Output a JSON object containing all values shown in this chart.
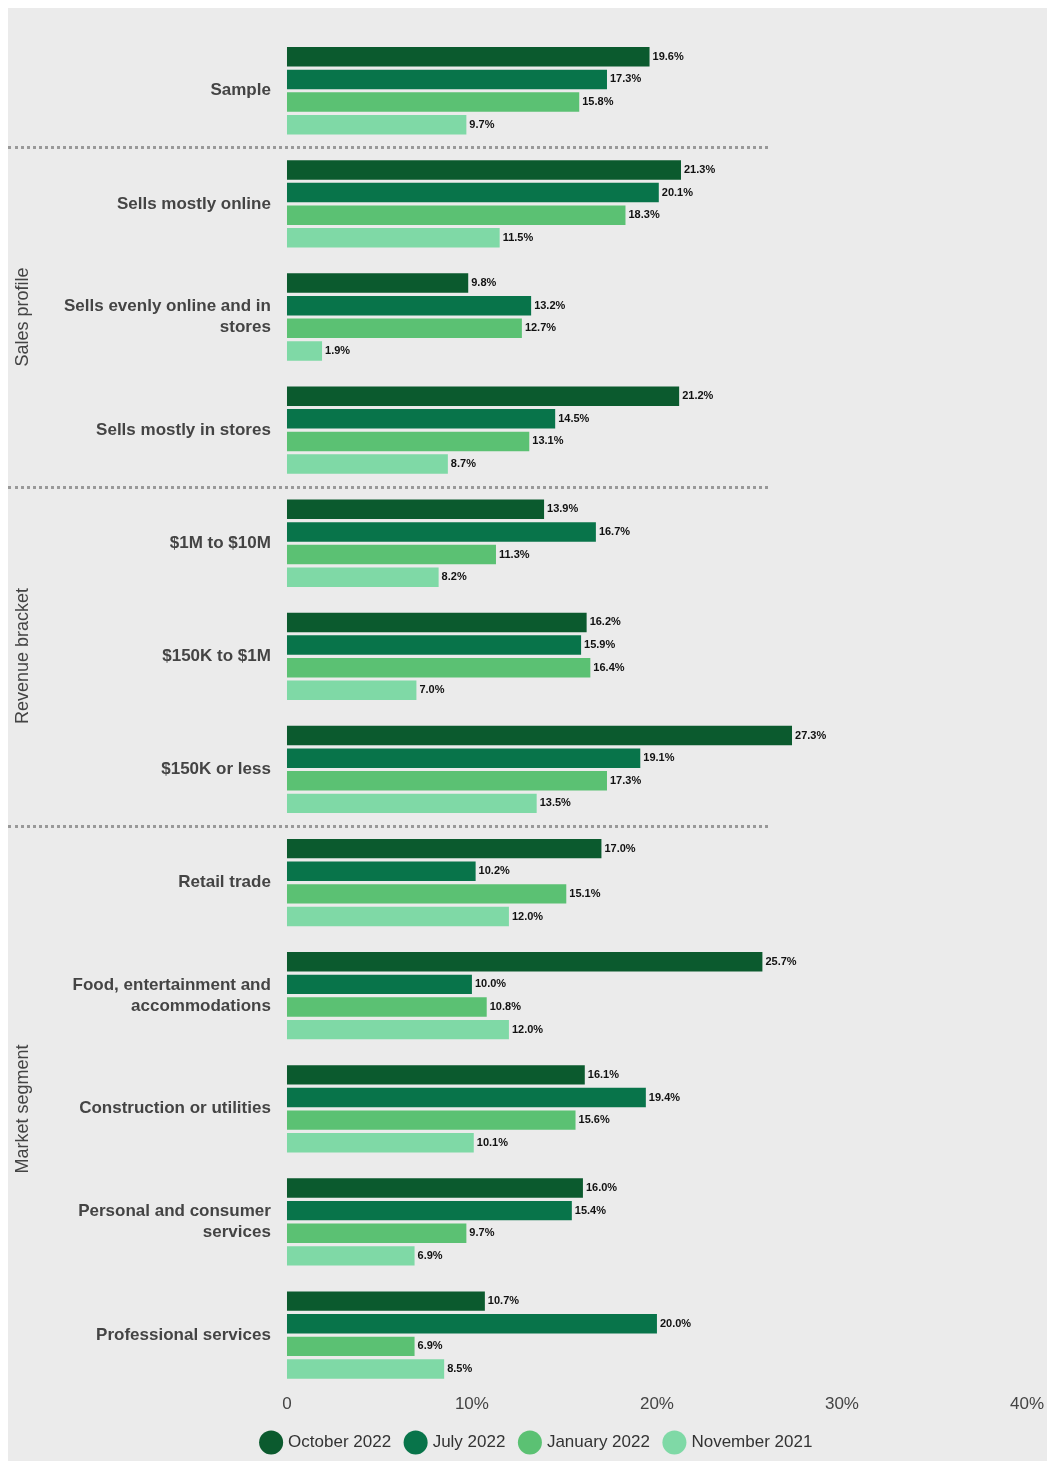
{
  "chart_data": {
    "type": "bar",
    "orientation": "horizontal",
    "categories": [
      "Sample",
      "Sells mostly online",
      "Sells evenly online and in stores",
      "Sells mostly in stores",
      "$1M to $10M",
      "$150K to $1M",
      "$150K or less",
      "Retail trade",
      "Food, entertainment and accommodations",
      "Construction or utilities",
      "Personal and consumer services",
      "Professional services"
    ],
    "series": [
      {
        "name": "October 2022",
        "color": "#0b5a2e",
        "values": [
          19.6,
          21.3,
          9.8,
          21.2,
          13.9,
          16.2,
          27.3,
          17.0,
          25.7,
          16.1,
          16.0,
          10.7
        ],
        "value_labels": [
          "19.6%",
          "21.3%",
          "9.8%",
          "21.2%",
          "13.9%",
          "16.2%",
          "27.3%",
          "17.0%",
          "25.7%",
          "16.1%",
          "16.0%",
          "10.7%"
        ]
      },
      {
        "name": "July 2022",
        "color": "#08744a",
        "values": [
          17.3,
          20.1,
          13.2,
          14.5,
          16.7,
          15.9,
          19.1,
          10.2,
          10.0,
          19.4,
          15.4,
          20.0
        ],
        "value_labels": [
          "17.3%",
          "20.1%",
          "13.2%",
          "14.5%",
          "16.7%",
          "15.9%",
          "19.1%",
          "10.2%",
          "10.0%",
          "19.4%",
          "15.4%",
          "20.0%"
        ]
      },
      {
        "name": "January 2022",
        "color": "#5bc173",
        "values": [
          15.8,
          18.3,
          12.7,
          13.1,
          11.3,
          16.4,
          17.3,
          15.1,
          10.8,
          15.6,
          9.7,
          6.9
        ],
        "value_labels": [
          "15.8%",
          "18.3%",
          "12.7%",
          "13.1%",
          "11.3%",
          "16.4%",
          "17.3%",
          "15.1%",
          "10.8%",
          "15.6%",
          "9.7%",
          "6.9%"
        ]
      },
      {
        "name": "November 2021",
        "color": "#7fd9a6",
        "values": [
          9.7,
          11.5,
          1.9,
          8.7,
          8.2,
          7.0,
          13.5,
          12.0,
          12.0,
          10.1,
          6.9,
          8.5
        ],
        "value_labels": [
          "9.7%",
          "11.5%",
          "1.9%",
          "8.7%",
          "8.2%",
          "7.0%",
          "13.5%",
          "12.0%",
          "12.0%",
          "10.1%",
          "6.9%",
          "8.5%"
        ]
      }
    ],
    "xlim": [
      0,
      40
    ],
    "xticks": [
      0,
      {
        "value": 10,
        "label": "10%"
      },
      {
        "value": 20,
        "label": "20%"
      },
      {
        "value": 30,
        "label": "30%"
      },
      {
        "value": 40,
        "label": "40%"
      }
    ],
    "annotations": [
      "Sales profile",
      "Revenue bracket",
      "Market segment"
    ],
    "grid": false,
    "legend": "bottom"
  }
}
